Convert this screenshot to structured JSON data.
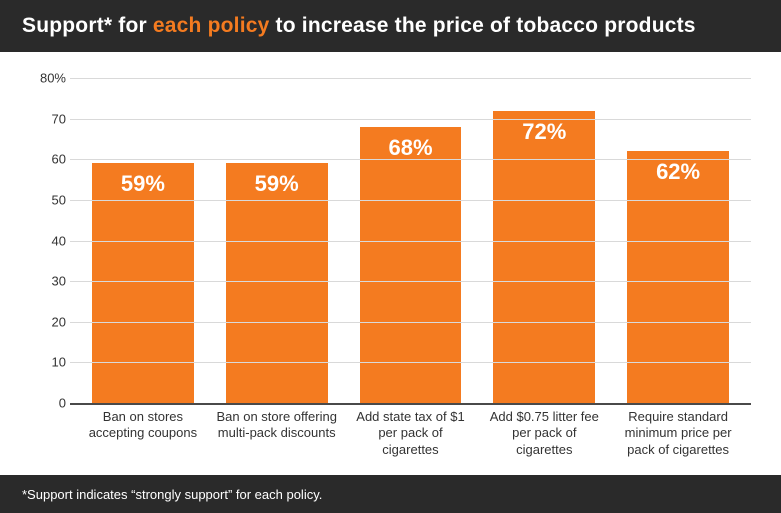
{
  "header": {
    "prefix": "Support* for ",
    "accent": "each policy",
    "suffix": " to increase the price of tobacco products",
    "bg_color": "#2a2a2a",
    "text_color": "#ffffff",
    "accent_color": "#f47b20",
    "fontsize": 21
  },
  "chart": {
    "type": "bar",
    "ylim": [
      0,
      80
    ],
    "ytick_step": 10,
    "ytick_suffix_top": "%",
    "categories": [
      "Ban on stores accepting coupons",
      "Ban on store offering multi-pack discounts",
      "Add state tax of $1 per pack of cigarettes",
      "Add $0.75 litter fee per pack of cigarettes",
      "Require standard minimum price per pack of cigarettes"
    ],
    "values": [
      59,
      59,
      68,
      72,
      62
    ],
    "value_suffix": "%",
    "bar_color": "#f47b20",
    "value_label_color": "#ffffff",
    "value_label_fontsize": 22,
    "gridline_color": "#d9d9d9",
    "axis_color": "#4a4a4a",
    "tick_color": "#333333",
    "tick_fontsize": 13,
    "xlabel_fontsize": 13,
    "background": "#ffffff"
  },
  "footer": {
    "text": "*Support indicates “strongly support” for each policy.",
    "bg_color": "#2a2a2a",
    "text_color": "#ffffff",
    "fontsize": 13
  }
}
